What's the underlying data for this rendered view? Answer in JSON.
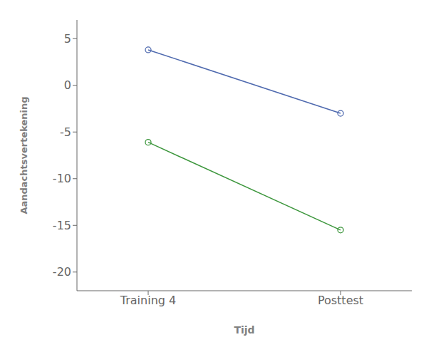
{
  "chart_data": {
    "type": "line",
    "categories": [
      "Training 4",
      "Posttest"
    ],
    "series": [
      {
        "color": "#4f6aaf",
        "marker": "circle",
        "values": [
          3.8,
          -3.0
        ]
      },
      {
        "color": "#3c963c",
        "marker": "circle",
        "values": [
          -6.1,
          -15.5
        ]
      }
    ],
    "xlabel": "Tijd",
    "ylabel": "Aandachtsvertekening",
    "ylim": [
      -22,
      7
    ],
    "yticks": [
      -20,
      -15,
      -10,
      -5,
      0,
      5
    ],
    "grid": false
  }
}
